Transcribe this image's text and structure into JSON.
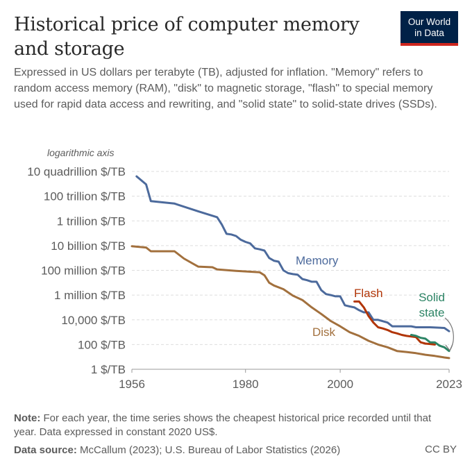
{
  "header": {
    "title_line1": "Historical price of computer memory",
    "title_line2": "and storage",
    "subtitle": "Expressed in US dollars per terabyte (TB), adjusted for inflation. \"Memory\" refers to random access memory (RAM), \"disk\" to magnetic storage, \"flash\" to special memory used for rapid data access and rewriting, and \"solid state\" to solid-state drives (SSDs).",
    "logo_line1": "Our World",
    "logo_line2": "in Data"
  },
  "footer": {
    "note_label": "Note:",
    "note_text": "For each year, the time series shows the cheapest historical price recorded until that year. Data expressed in constant 2020 US$.",
    "source_label": "Data source:",
    "source_text": "McCallum (2023); U.S. Bureau of Labor Statistics (2026)",
    "license": "CC BY"
  },
  "colors": {
    "Memory": "#4c6a9c",
    "Disk": "#a2703d",
    "Flash": "#b13507",
    "Solid state": "#2c8465",
    "grid": "#dddddd",
    "text": "#5b5b5b"
  },
  "chart_data": {
    "type": "line",
    "scale_y": "log",
    "axis_note": "logarithmic axis",
    "xlim": [
      1956,
      2023
    ],
    "ylim": [
      1,
      1e+16
    ],
    "x_ticks": [
      1956,
      1980,
      2000,
      2023
    ],
    "y_ticks": [
      {
        "value": 1,
        "label": "1 $/TB"
      },
      {
        "value": 100,
        "label": "100 $/TB"
      },
      {
        "value": 10000,
        "label": "10,000 $/TB"
      },
      {
        "value": 1000000,
        "label": "1 million $/TB"
      },
      {
        "value": 100000000,
        "label": "100 million $/TB"
      },
      {
        "value": 10000000000,
        "label": "10 billion $/TB"
      },
      {
        "value": 1000000000000,
        "label": "1 trillion $/TB"
      },
      {
        "value": 100000000000000,
        "label": "100 trillion $/TB"
      },
      {
        "value": 10000000000000000,
        "label": "10 quadrillion $/TB"
      }
    ],
    "grid": true,
    "series": [
      {
        "name": "Memory",
        "label_lines": [
          "Memory"
        ],
        "points": [
          [
            1957,
            4000000000000000.0
          ],
          [
            1959,
            900000000000000.0
          ],
          [
            1960,
            40000000000000.0
          ],
          [
            1965,
            25000000000000.0
          ],
          [
            1970,
            6000000000000.0
          ],
          [
            1974,
            2000000000000.0
          ],
          [
            1975,
            500000000000.0
          ],
          [
            1976,
            90000000000.0
          ],
          [
            1977,
            80000000000.0
          ],
          [
            1978,
            60000000000.0
          ],
          [
            1979,
            30000000000.0
          ],
          [
            1980,
            20000000000.0
          ],
          [
            1981,
            15000000000.0
          ],
          [
            1982,
            6000000000.0
          ],
          [
            1983,
            5000000000.0
          ],
          [
            1984,
            4000000000.0
          ],
          [
            1985,
            1000000000.0
          ],
          [
            1986,
            600000000.0
          ],
          [
            1987,
            500000000.0
          ],
          [
            1988,
            100000000.0
          ],
          [
            1989,
            60000000.0
          ],
          [
            1990,
            50000000.0
          ],
          [
            1991,
            45000000.0
          ],
          [
            1992,
            20000000.0
          ],
          [
            1993,
            16000000.0
          ],
          [
            1994,
            12000000.0
          ],
          [
            1995,
            12000000.0
          ],
          [
            1996,
            2500000.0
          ],
          [
            1997,
            1200000.0
          ],
          [
            1998,
            1000000.0
          ],
          [
            1999,
            800000.0
          ],
          [
            2000,
            800000.0
          ],
          [
            2001,
            150000.0
          ],
          [
            2002,
            120000.0
          ],
          [
            2003,
            100000.0
          ],
          [
            2004,
            60000.0
          ],
          [
            2005,
            40000.0
          ],
          [
            2006,
            40000.0
          ],
          [
            2007,
            10000.0
          ],
          [
            2008,
            10000.0
          ],
          [
            2010,
            6000.0
          ],
          [
            2011,
            3000.0
          ],
          [
            2014,
            3000.0
          ],
          [
            2015,
            3000.0
          ],
          [
            2016,
            2500.0
          ],
          [
            2018,
            2500.0
          ],
          [
            2019,
            2500.0
          ],
          [
            2022,
            2200.0
          ],
          [
            2023,
            1200.0
          ]
        ]
      },
      {
        "name": "Disk",
        "label_lines": [
          "Disk"
        ],
        "points": [
          [
            1956,
            9000000000.0
          ],
          [
            1959,
            7000000000.0
          ],
          [
            1960,
            3500000000.0
          ],
          [
            1965,
            3500000000.0
          ],
          [
            1967,
            900000000.0
          ],
          [
            1970,
            200000000.0
          ],
          [
            1973,
            180000000.0
          ],
          [
            1974,
            120000000.0
          ],
          [
            1978,
            90000000.0
          ],
          [
            1983,
            70000000.0
          ],
          [
            1984,
            40000000.0
          ],
          [
            1985,
            10000000.0
          ],
          [
            1986,
            6000000.0
          ],
          [
            1988,
            3000000.0
          ],
          [
            1990,
            900000.0
          ],
          [
            1992,
            400000.0
          ],
          [
            1994,
            100000.0
          ],
          [
            1996,
            30000.0
          ],
          [
            1998,
            8000.0
          ],
          [
            2000,
            3000.0
          ],
          [
            2002,
            1000.0
          ],
          [
            2004,
            500
          ],
          [
            2006,
            200
          ],
          [
            2008,
            100
          ],
          [
            2010,
            60
          ],
          [
            2012,
            30
          ],
          [
            2014,
            25
          ],
          [
            2016,
            20
          ],
          [
            2018,
            15
          ],
          [
            2020,
            12
          ],
          [
            2022,
            9
          ],
          [
            2023,
            8
          ]
        ]
      },
      {
        "name": "Flash",
        "label_lines": [
          "Flash"
        ],
        "points": [
          [
            2003,
            300000.0
          ],
          [
            2004,
            300000.0
          ],
          [
            2005,
            100000.0
          ],
          [
            2006,
            20000.0
          ],
          [
            2007,
            6000.0
          ],
          [
            2008,
            2500.0
          ],
          [
            2009,
            2000.0
          ],
          [
            2010,
            1500.0
          ],
          [
            2011,
            1000.0
          ],
          [
            2012,
            800
          ],
          [
            2013,
            600
          ],
          [
            2014,
            500
          ],
          [
            2016,
            400
          ],
          [
            2017,
            150
          ],
          [
            2018,
            120
          ],
          [
            2019,
            110
          ],
          [
            2020,
            100
          ]
        ]
      },
      {
        "name": "Solid state",
        "label_lines": [
          "Solid",
          "state"
        ],
        "points": [
          [
            2015,
            600
          ],
          [
            2016,
            500
          ],
          [
            2017,
            350
          ],
          [
            2018,
            300
          ],
          [
            2019,
            150
          ],
          [
            2020,
            150
          ],
          [
            2021,
            80
          ],
          [
            2022,
            60
          ],
          [
            2023,
            30
          ]
        ]
      }
    ]
  }
}
